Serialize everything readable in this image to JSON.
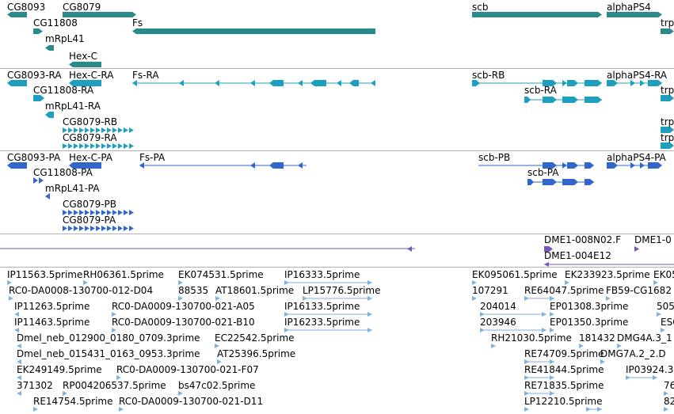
{
  "colors": {
    "gene": "#2a8a8a",
    "transcript": "#1f9fbf",
    "protein": "#3366cc",
    "clone": "#7755bb",
    "est": "#7fb2dd"
  },
  "tracks": {
    "genes": {
      "labels": [
        "CG8093",
        "CG8079",
        "CG11808",
        "Fs",
        "mRpL41",
        "Hex-C",
        "scb",
        "alphaPS4",
        "trp"
      ]
    },
    "transcripts": {
      "labels": [
        "CG8093-RA",
        "Hex-C-RA",
        "Fs-RA",
        "CG11808-RA",
        "mRpL41-RA",
        "CG8079-RB",
        "CG8079-RA",
        "scb-RB",
        "scb-RA",
        "alphaPS4-RA",
        "trp",
        "trp",
        "trp"
      ]
    },
    "proteins": {
      "labels": [
        "CG8093-PA",
        "Hex-C-PA",
        "Fs-PA",
        "CG11808-PA",
        "mRpL41-PA",
        "CG8079-PB",
        "CG8079-PA",
        "scb-PB",
        "scb-PA",
        "alphaPS4-PA"
      ]
    },
    "clones": {
      "labels": [
        "DME1-008N02.F",
        "DME1-0",
        "DME1-004E12"
      ]
    },
    "ests": {
      "labels": [
        "IP11563.5prime",
        "RH06361.5prime",
        "EK074531.5prime",
        "IP16333.5prime",
        "RC0-DA0008-130700-012-D04",
        "88535",
        "AT18601.5prime",
        "LP15776.5prime",
        "IP11263.5prime",
        "RC0-DA0009-130700-021-A05",
        "IP16133.5prime",
        "IP11463.5prime",
        "RC0-DA0009-130700-021-B10",
        "IP16233.5prime",
        "Dmel_neb_012900_0180_0709.3prime",
        "EC22542.5prime",
        "Dmel_neb_015431_0163_0953.3prime",
        "AT25396.5prime",
        "EK249149.5prime",
        "RC0-DA0009-130700-021-F07",
        "371302",
        "RP004206537.5prime",
        "bs47c02.5prime",
        "RE14754.5prime",
        "RC0-DA0009-130700-021-D11",
        "EK095061.5prime",
        "EK233923.5prime",
        "EK05",
        "107291",
        "RE64047.5prime",
        "FB59-CG1682",
        "204014",
        "EP01308.3prime",
        "505",
        "203946",
        "EP01350.3prime",
        "ESC",
        "RH21030.5prime",
        "181432",
        "DMG4A.3_1",
        "RE74709.5prime",
        "DMG7A.2_2.D",
        "RE41844.5prime",
        "IP03924.3",
        "RE71835.5prime",
        "76",
        "LP12210.5prime",
        "82"
      ]
    }
  }
}
